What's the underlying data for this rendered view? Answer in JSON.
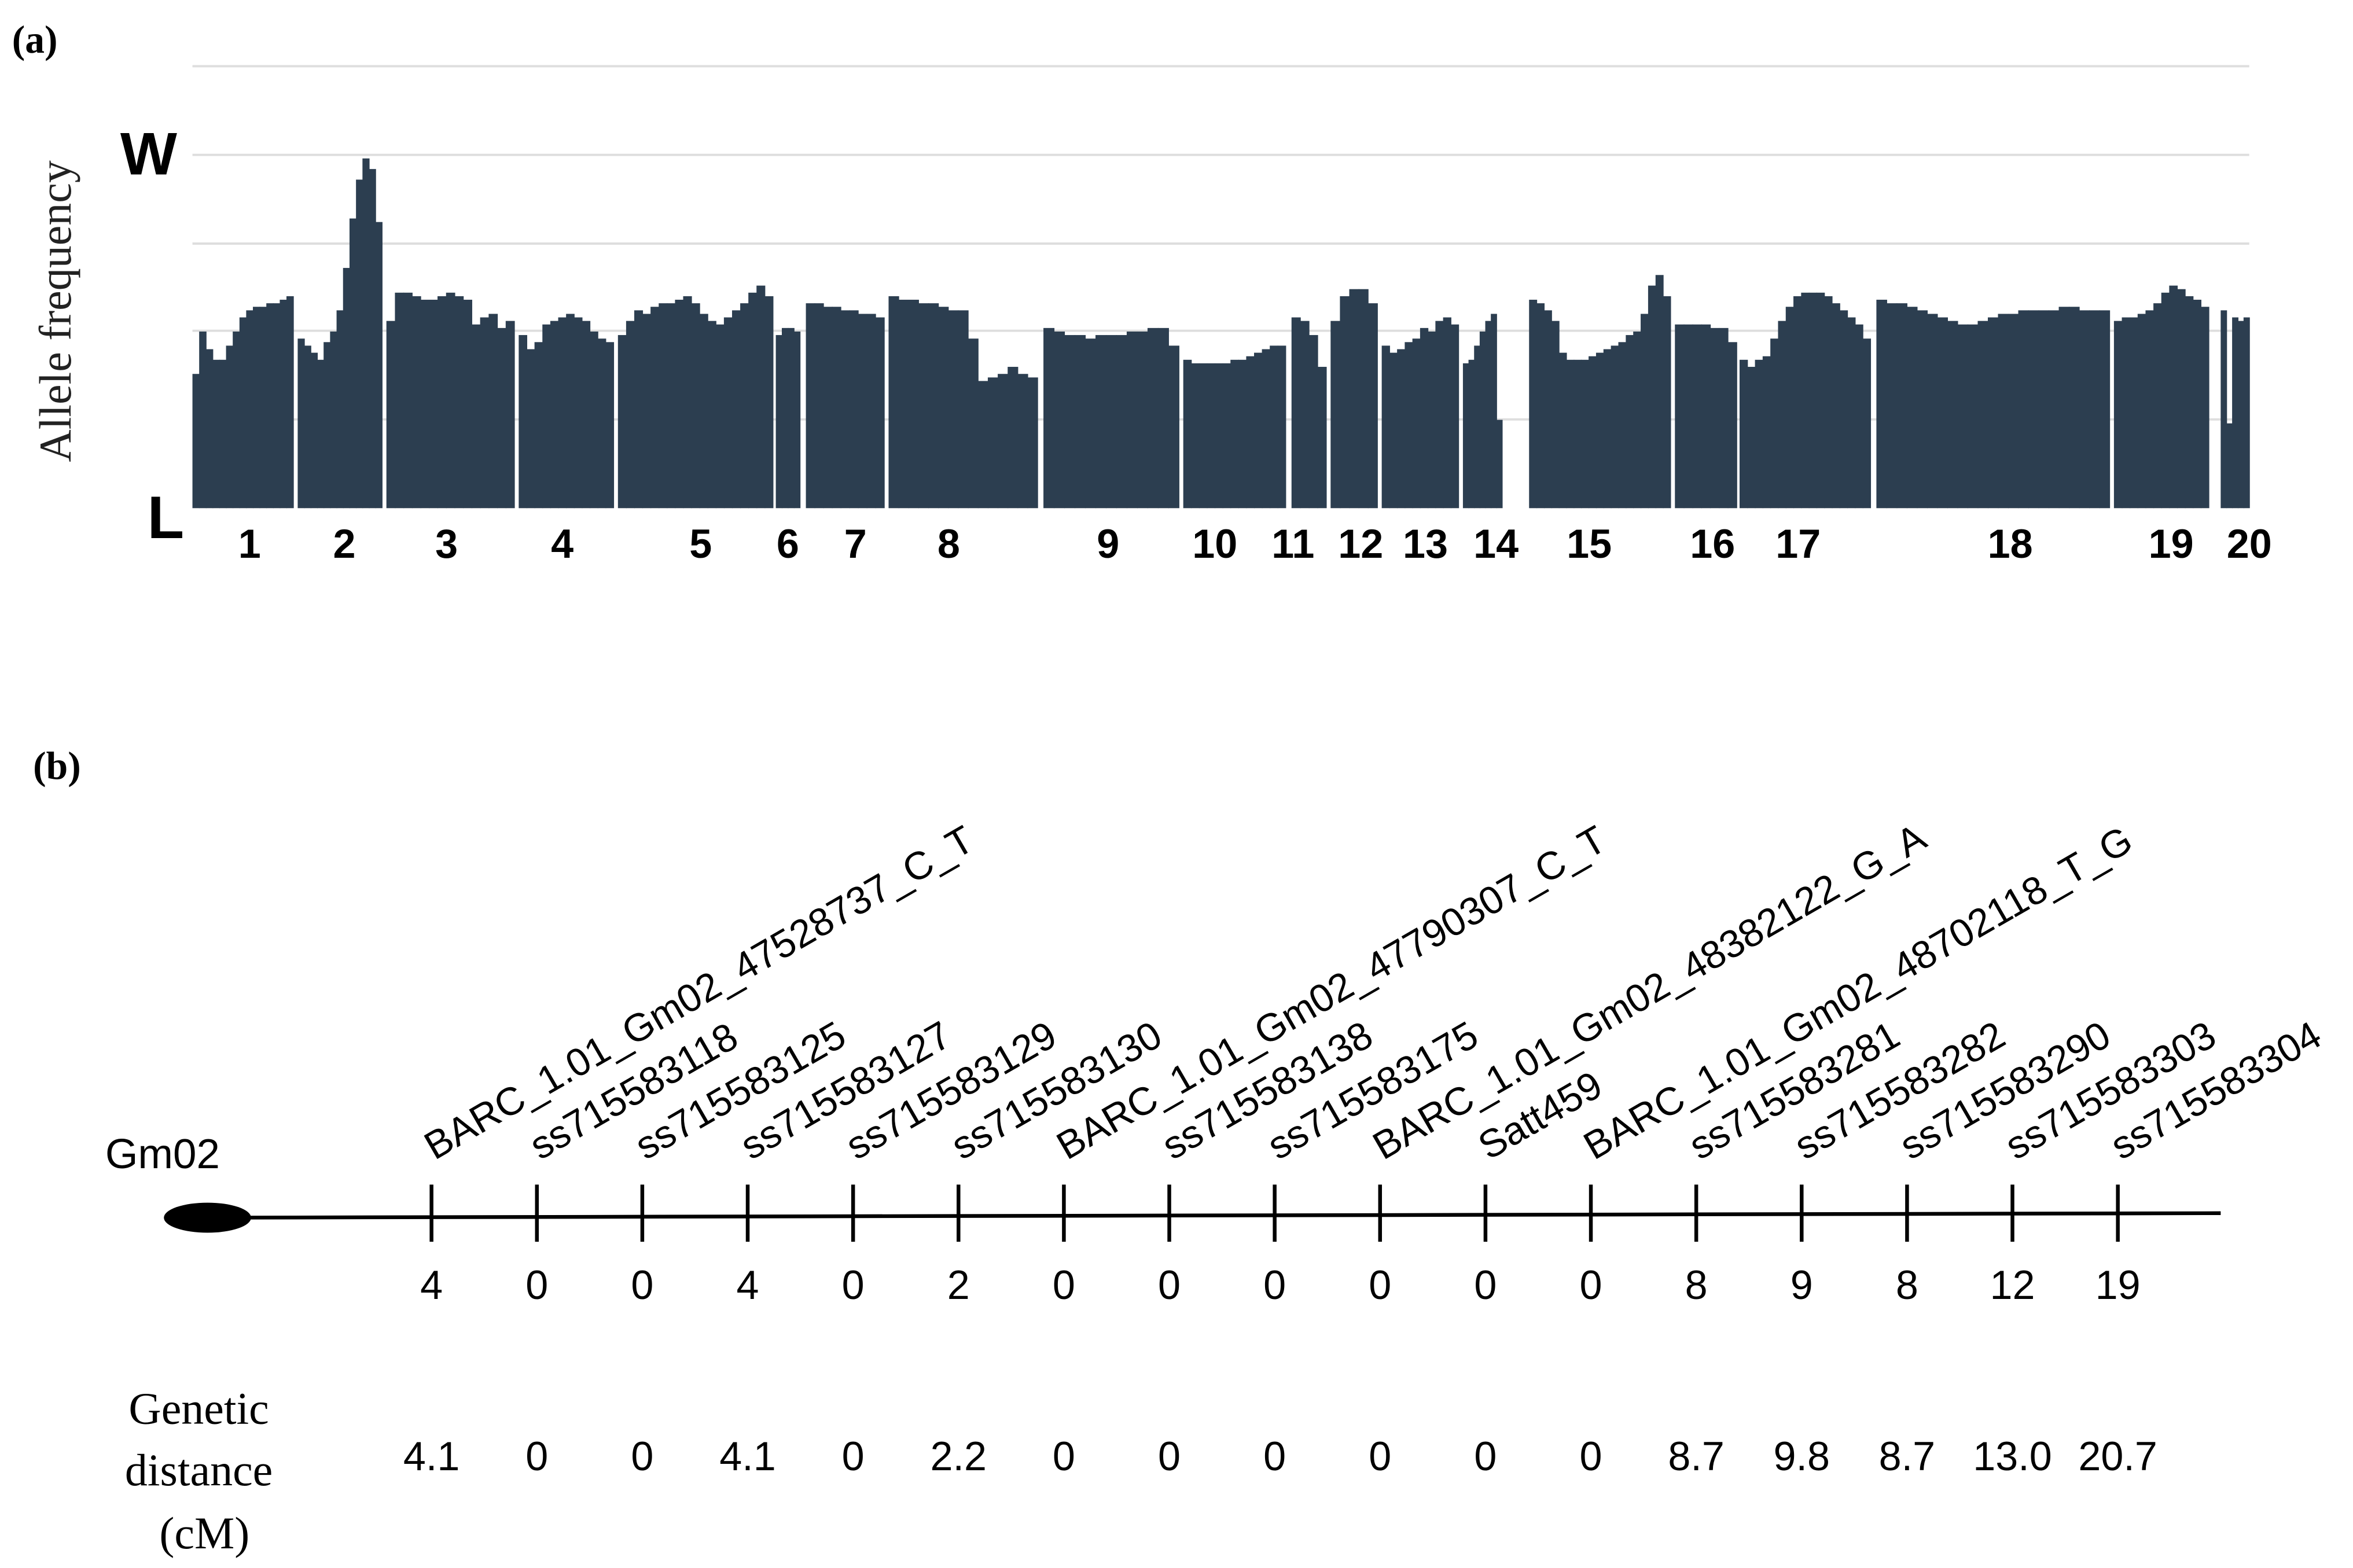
{
  "chart_data": [
    {
      "panel": "(a)",
      "type": "bar",
      "ylabel": "Allele frequency",
      "y_top_label": "W",
      "y_bottom_label": "L",
      "grid": true,
      "note": "values are approximate allele frequency (0 = L, 1 = W) read from the plot",
      "chromosomes": [
        {
          "label": "1",
          "values": [
            0.38,
            0.5,
            0.45,
            0.42,
            0.42,
            0.46,
            0.5,
            0.54,
            0.56,
            0.57,
            0.57,
            0.58,
            0.58,
            0.59,
            0.6
          ]
        },
        {
          "label": "2",
          "values": [
            0.48,
            0.46,
            0.44,
            0.42,
            0.47,
            0.5,
            0.56,
            0.68,
            0.82,
            0.93,
            0.99,
            0.96,
            0.81
          ]
        },
        {
          "label": "3",
          "values": [
            0.53,
            0.61,
            0.61,
            0.6,
            0.59,
            0.59,
            0.6,
            0.61,
            0.6,
            0.59,
            0.52,
            0.54,
            0.55,
            0.51,
            0.53
          ]
        },
        {
          "label": "4",
          "values": [
            0.49,
            0.45,
            0.47,
            0.52,
            0.53,
            0.54,
            0.55,
            0.54,
            0.53,
            0.5,
            0.48,
            0.47
          ]
        },
        {
          "label": "5",
          "values": [
            0.49,
            0.53,
            0.56,
            0.55,
            0.57,
            0.58,
            0.58,
            0.59,
            0.6,
            0.58,
            0.55,
            0.53,
            0.52,
            0.54,
            0.56,
            0.58,
            0.61,
            0.63,
            0.6
          ]
        },
        {
          "label": "6",
          "values": [
            0.49,
            0.51,
            0.51,
            0.5
          ]
        },
        {
          "label": "7",
          "values": [
            0.58,
            0.58,
            0.57,
            0.57,
            0.56,
            0.56,
            0.55,
            0.55,
            0.54
          ]
        },
        {
          "label": "8",
          "values": [
            0.6,
            0.59,
            0.59,
            0.58,
            0.58,
            0.57,
            0.56,
            0.56,
            0.48,
            0.36,
            0.37,
            0.38,
            0.4,
            0.38,
            0.37
          ]
        },
        {
          "label": "9",
          "values": [
            0.51,
            0.5,
            0.49,
            0.49,
            0.48,
            0.49,
            0.49,
            0.49,
            0.5,
            0.5,
            0.51,
            0.51,
            0.46
          ]
        },
        {
          "label": "10",
          "values": [
            0.42,
            0.41,
            0.41,
            0.41,
            0.41,
            0.41,
            0.42,
            0.42,
            0.43,
            0.44,
            0.45,
            0.46,
            0.46
          ]
        },
        {
          "label": "11",
          "values": [
            0.54,
            0.53,
            0.49,
            0.4
          ]
        },
        {
          "label": "12",
          "values": [
            0.53,
            0.6,
            0.62,
            0.62,
            0.58
          ]
        },
        {
          "label": "13",
          "values": [
            0.46,
            0.44,
            0.45,
            0.47,
            0.48,
            0.51,
            0.5,
            0.53,
            0.54,
            0.52
          ]
        },
        {
          "label": "14",
          "values": [
            0.41,
            0.42,
            0.46,
            0.5,
            0.53,
            0.55,
            0.25
          ]
        },
        {
          "label": "15",
          "values": [
            0.59,
            0.58,
            0.56,
            0.53,
            0.44,
            0.42,
            0.42,
            0.42,
            0.43,
            0.44,
            0.45,
            0.46,
            0.47,
            0.49,
            0.5,
            0.55,
            0.63,
            0.66,
            0.6
          ]
        },
        {
          "label": "16",
          "values": [
            0.52,
            0.52,
            0.52,
            0.52,
            0.51,
            0.51,
            0.47
          ]
        },
        {
          "label": "17",
          "values": [
            0.42,
            0.4,
            0.42,
            0.43,
            0.48,
            0.53,
            0.57,
            0.6,
            0.61,
            0.61,
            0.61,
            0.6,
            0.58,
            0.56,
            0.54,
            0.52,
            0.48
          ]
        },
        {
          "label": "18",
          "values": [
            0.59,
            0.58,
            0.58,
            0.57,
            0.56,
            0.55,
            0.54,
            0.53,
            0.52,
            0.52,
            0.53,
            0.54,
            0.55,
            0.55,
            0.56,
            0.56,
            0.56,
            0.56,
            0.57,
            0.57,
            0.56,
            0.56,
            0.56
          ]
        },
        {
          "label": "19",
          "values": [
            0.53,
            0.54,
            0.54,
            0.55,
            0.56,
            0.58,
            0.61,
            0.63,
            0.62,
            0.6,
            0.59,
            0.57
          ]
        },
        {
          "label": "20",
          "values": [
            0.56,
            0.24,
            0.54,
            0.53,
            0.54
          ]
        }
      ]
    },
    {
      "panel": "(b)",
      "type": "table",
      "chromosome": "Gm02",
      "genetic_distance_label_lines": [
        "Genetic",
        "distance",
        "(cM)"
      ],
      "markers": [
        {
          "name": "BARC_1.01_Gm02_47528737_C_T",
          "count": "4",
          "distance": "4.1"
        },
        {
          "name": "ss715583118",
          "count": "0",
          "distance": "0"
        },
        {
          "name": "ss715583125",
          "count": "0",
          "distance": "0"
        },
        {
          "name": "ss715583127",
          "count": "4",
          "distance": "4.1"
        },
        {
          "name": "ss715583129",
          "count": "0",
          "distance": "0"
        },
        {
          "name": "ss715583130",
          "count": "2",
          "distance": "2.2"
        },
        {
          "name": "BARC_1.01_Gm02_47790307_C_T",
          "count": "0",
          "distance": "0"
        },
        {
          "name": "ss715583138",
          "count": "0",
          "distance": "0"
        },
        {
          "name": "ss715583175",
          "count": "0",
          "distance": "0"
        },
        {
          "name": "BARC_1.01_Gm02_48382122_G_A",
          "count": "0",
          "distance": "0"
        },
        {
          "name": "Satt459",
          "count": "0",
          "distance": "0"
        },
        {
          "name": "BARC_1.01_Gm02_48702118_T_G",
          "count": "0",
          "distance": "0"
        },
        {
          "name": "ss715583281",
          "count": "8",
          "distance": "8.7"
        },
        {
          "name": "ss715583282",
          "count": "9",
          "distance": "9.8"
        },
        {
          "name": "ss715583290",
          "count": "8",
          "distance": "8.7"
        },
        {
          "name": "ss715583303",
          "count": "12",
          "distance": "13.0"
        },
        {
          "name": "ss715583304",
          "count": "19",
          "distance": "20.7"
        }
      ]
    }
  ]
}
